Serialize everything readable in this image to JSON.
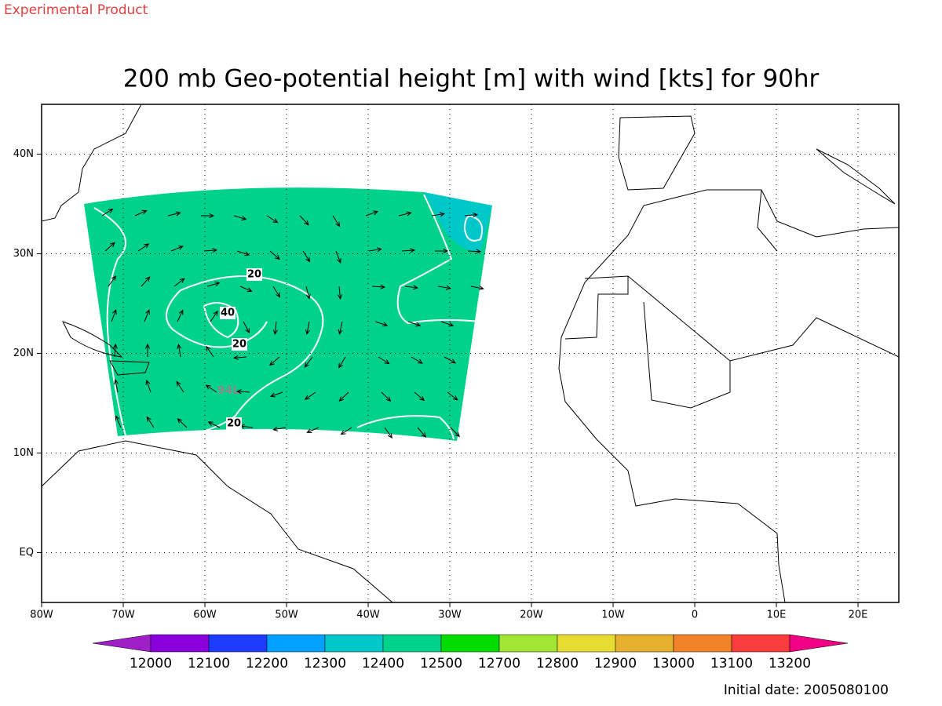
{
  "header": {
    "label": "Experimental Product"
  },
  "title": "200 mb Geo-potential height [m] with wind [kts] for 90hr",
  "map": {
    "lat_range": [
      -5,
      45
    ],
    "lon_range": [
      -80,
      25
    ],
    "grid": true,
    "lat_ticks": [
      {
        "value": 40,
        "label": "40N"
      },
      {
        "value": 30,
        "label": "30N"
      },
      {
        "value": 20,
        "label": "20N"
      },
      {
        "value": 10,
        "label": "10N"
      },
      {
        "value": 0,
        "label": "EQ"
      }
    ],
    "lon_ticks": [
      {
        "value": -80,
        "label": "80W"
      },
      {
        "value": -70,
        "label": "70W"
      },
      {
        "value": -60,
        "label": "60W"
      },
      {
        "value": -50,
        "label": "50W"
      },
      {
        "value": -40,
        "label": "40W"
      },
      {
        "value": -30,
        "label": "30W"
      },
      {
        "value": -20,
        "label": "20W"
      },
      {
        "value": -10,
        "label": "10W"
      },
      0,
      {
        "value": 10,
        "label": "10E"
      },
      {
        "value": 20,
        "label": "20E"
      }
    ],
    "contour_labels": [
      20,
      40,
      20,
      20
    ],
    "storm_label": "94L"
  },
  "colorbar": {
    "levels": [
      12000,
      12100,
      12200,
      12300,
      12400,
      12500,
      12700,
      12800,
      12900,
      13000,
      13100,
      13200
    ],
    "colors": [
      "#a020c8",
      "#8a00dc",
      "#1e3cff",
      "#00a0ff",
      "#00c8c8",
      "#00d28c",
      "#00dc00",
      "#a0e632",
      "#e6dc32",
      "#e6af2d",
      "#f08228",
      "#fa3c3c",
      "#f00082"
    ]
  },
  "footer": "Initial date: 2005080100"
}
